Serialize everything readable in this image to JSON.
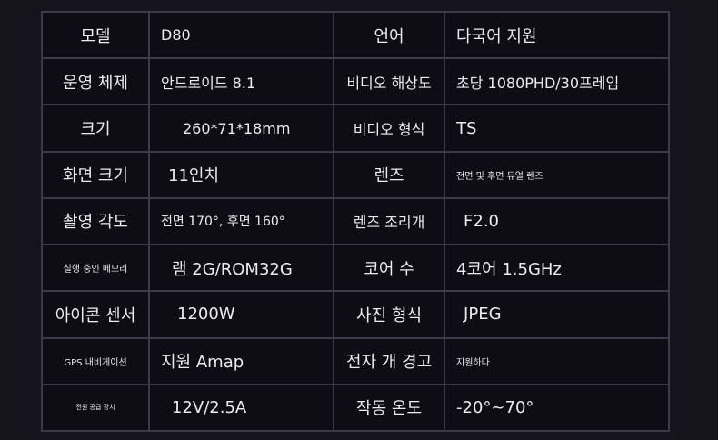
{
  "rows": [
    {
      "label1": "모델",
      "value1": "D80",
      "label2": "언어",
      "value2": "다국어 지원"
    },
    {
      "label1": "운영 체제",
      "value1": "안드로이드 8.1",
      "label2": "비디오 해상도",
      "value2": "초당 1080PHD/30프레임"
    },
    {
      "label1": "크기",
      "value1": "260*71*18mm",
      "label2": "비디오 형식",
      "value2": "TS"
    },
    {
      "label1": "화면 크기",
      "value1": "11인치",
      "label2": "렌즈",
      "value2": "전면 및 후면 듀얼 렌즈"
    },
    {
      "label1": "촬영 각도",
      "value1": "전면 170°, 후면 160°",
      "label2": "렌즈 조리개",
      "value2": "F2.0"
    },
    {
      "label1": "실행 중인 메모리",
      "value1": "램 2G/ROM32G",
      "label2": "코어 수",
      "value2": "4코어 1.5GHz"
    },
    {
      "label1": "아이콘 센서",
      "value1": "1200W",
      "label2": "사진 형식",
      "value2": "JPEG"
    },
    {
      "label1": "GPS 내비게이션",
      "value1": "지원 Amap",
      "label2": "전자 개 경고",
      "value2": "지원하다"
    },
    {
      "label1": "전원 공급 장치",
      "value1": "12V/2.5A",
      "label2": "작동 온도",
      "value2": "-20°~70°"
    }
  ]
}
